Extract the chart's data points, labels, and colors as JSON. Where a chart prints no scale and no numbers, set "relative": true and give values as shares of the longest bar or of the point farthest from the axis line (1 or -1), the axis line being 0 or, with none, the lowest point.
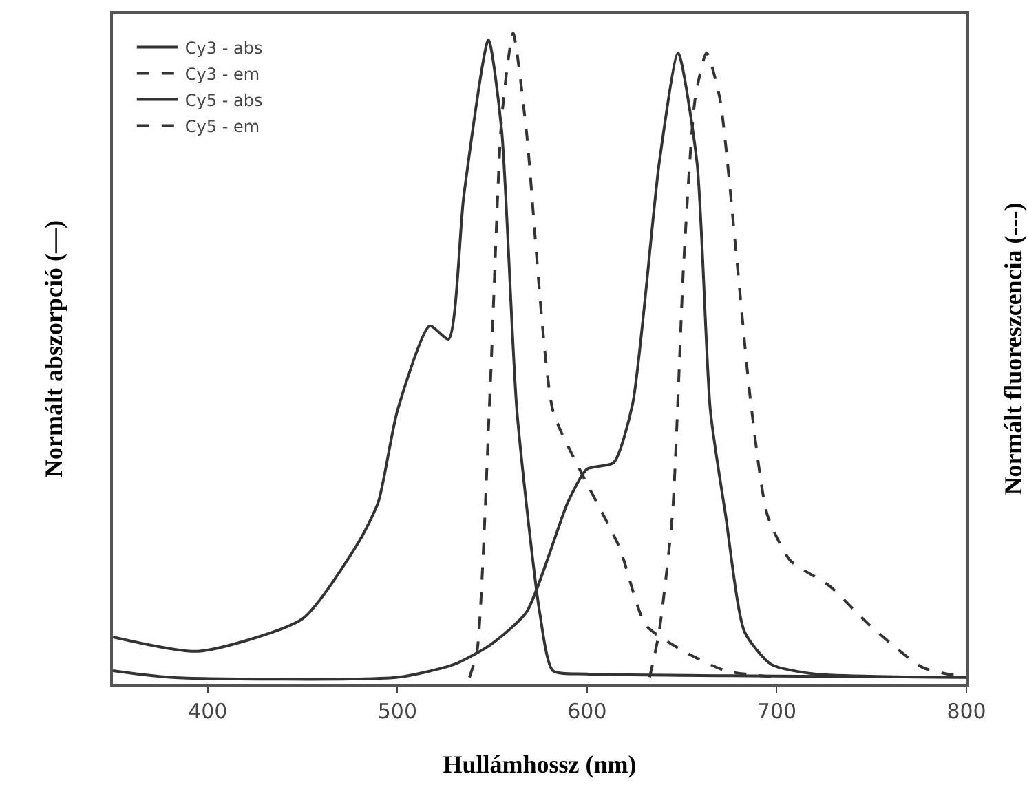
{
  "chart_data": {
    "type": "line",
    "relative": true,
    "xlabel": "Hullámhossz (nm)",
    "ylabel": "Normált abszorpció (—)",
    "y2label": "Normált fluoreszcencia (---)",
    "xlim": [
      350,
      800
    ],
    "xticks": [
      400,
      500,
      600,
      700,
      800
    ],
    "grid": false,
    "legend": "top left",
    "marker": "none",
    "series": [
      {
        "name": "Cy3 - abs",
        "color": "#333333",
        "line_style": "solid",
        "x": [
          350,
          395,
          450,
          480,
          490,
          500,
          517,
          527,
          535,
          548,
          555,
          563,
          575,
          582,
          600,
          700,
          800
        ],
        "values": [
          0.072,
          0.05,
          0.1,
          0.22,
          0.28,
          0.42,
          0.55,
          0.53,
          0.75,
          0.99,
          0.85,
          0.42,
          0.11,
          0.02,
          0.015,
          0.012,
          0.01
        ]
      },
      {
        "name": "Cy3 - em",
        "color": "#333333",
        "line_style": "dashed",
        "axis": "y2",
        "x": [
          538,
          542,
          549,
          555,
          561,
          568,
          582,
          596,
          617,
          631,
          651,
          673,
          700
        ],
        "values": [
          0.01,
          0.05,
          0.46,
          0.87,
          1.0,
          0.85,
          0.42,
          0.33,
          0.21,
          0.09,
          0.05,
          0.02,
          0.01
        ]
      },
      {
        "name": "Cy5 - abs",
        "color": "#333333",
        "line_style": "solid",
        "x": [
          350,
          380,
          500,
          530,
          549,
          568,
          590,
          600,
          614,
          624,
          638,
          648,
          658,
          665,
          673,
          683,
          697,
          720,
          800
        ],
        "values": [
          0.02,
          0.01,
          0.01,
          0.03,
          0.06,
          0.11,
          0.28,
          0.33,
          0.34,
          0.43,
          0.8,
          0.97,
          0.8,
          0.42,
          0.26,
          0.08,
          0.03,
          0.015,
          0.01
        ]
      },
      {
        "name": "Cy5 - em",
        "color": "#333333",
        "line_style": "dashed",
        "axis": "y2",
        "x": [
          633,
          638,
          645,
          651,
          657,
          663,
          670,
          679,
          686,
          695,
          707,
          728,
          749,
          777,
          800
        ],
        "values": [
          0.01,
          0.08,
          0.26,
          0.65,
          0.9,
          0.97,
          0.9,
          0.65,
          0.44,
          0.26,
          0.19,
          0.15,
          0.09,
          0.025,
          0.01
        ]
      }
    ]
  }
}
